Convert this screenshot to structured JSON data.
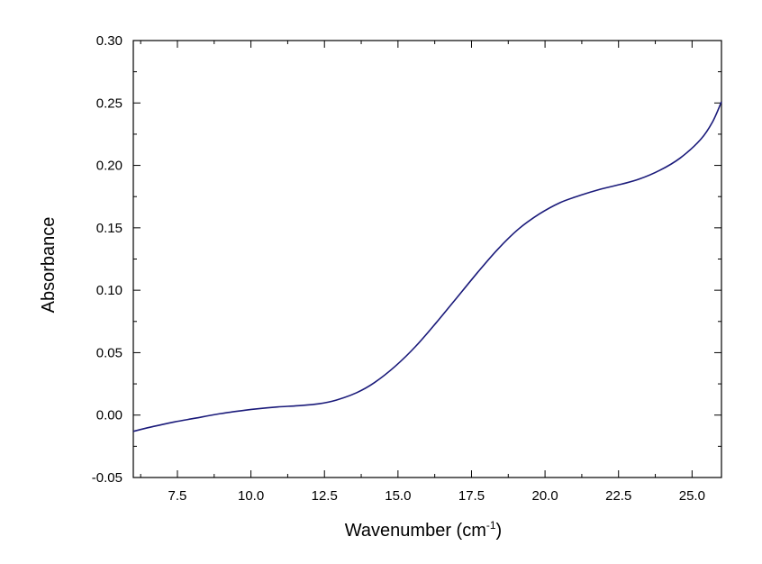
{
  "chart_data": {
    "type": "line",
    "title": "",
    "xlabel": "Wavenumber (cm",
    "xlabel_sup": "-1",
    "xlabel_suffix": ")",
    "ylabel": "Absorbance",
    "xlim": [
      6.0,
      26.0
    ],
    "ylim": [
      -0.05,
      0.3
    ],
    "grid": false,
    "legend": "none",
    "line_color": "#1a1a7a",
    "x_ticks": [
      7.5,
      10.0,
      12.5,
      15.0,
      17.5,
      20.0,
      22.5,
      25.0
    ],
    "x_tick_labels": [
      "7.5",
      "10.0",
      "12.5",
      "15.0",
      "17.5",
      "20.0",
      "22.5",
      "25.0"
    ],
    "y_ticks": [
      -0.05,
      0.0,
      0.05,
      0.1,
      0.15,
      0.2,
      0.25,
      0.3
    ],
    "y_tick_labels": [
      "-0.05",
      "0.00",
      "0.05",
      "0.10",
      "0.15",
      "0.20",
      "0.25",
      "0.30"
    ],
    "series": [
      {
        "x": [
          6.0,
          6.7,
          7.4,
          8.1,
          8.8,
          9.5,
          10.2,
          10.9,
          11.6,
          12.3,
          12.9,
          13.6,
          14.2,
          14.9,
          15.6,
          16.3,
          17.0,
          17.7,
          18.4,
          19.1,
          19.8,
          20.5,
          21.2,
          21.9,
          22.6,
          23.2,
          23.9,
          24.6,
          25.3,
          25.7,
          26.0
        ],
        "y": [
          -0.013,
          -0.009,
          -0.0055,
          -0.0025,
          0.0005,
          0.003,
          0.005,
          0.0065,
          0.0075,
          0.009,
          0.012,
          0.018,
          0.026,
          0.039,
          0.055,
          0.074,
          0.094,
          0.114,
          0.133,
          0.149,
          0.161,
          0.17,
          0.176,
          0.181,
          0.185,
          0.189,
          0.196,
          0.206,
          0.221,
          0.235,
          0.251
        ]
      }
    ]
  }
}
